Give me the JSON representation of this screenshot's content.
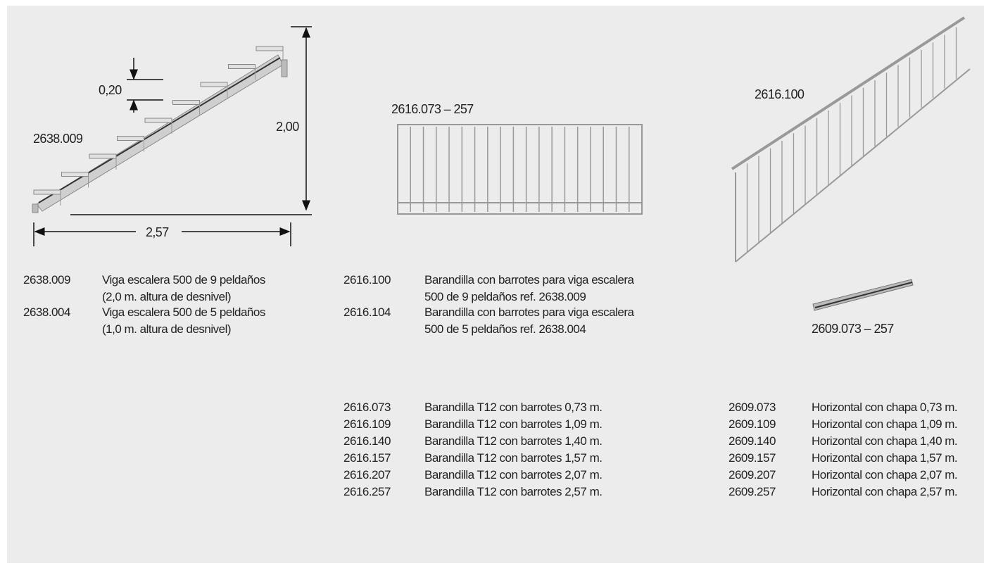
{
  "figures": {
    "stair": {
      "step_height": "0,20",
      "code": "2638.009",
      "height": "2,00",
      "length": "2,57"
    },
    "railing": {
      "code": "2616.073 – 257"
    },
    "stair_railing": {
      "code": "2616.100"
    },
    "horizontal": {
      "code": "2609.073 – 257"
    }
  },
  "stair_beams": [
    {
      "code": "2638.009",
      "lines": [
        "Viga escalera 500 de 9 peldaños",
        "(2,0 m. altura de desnivel)"
      ]
    },
    {
      "code": "2638.004",
      "lines": [
        "Viga escalera 500 de 5 peldaños",
        "(1,0 m. altura de desnivel)"
      ]
    }
  ],
  "stair_railings": [
    {
      "code": "2616.100",
      "lines": [
        "Barandilla con barrotes para viga escalera",
        "500 de 9 peldaños ref. 2638.009"
      ]
    },
    {
      "code": "2616.104",
      "lines": [
        "Barandilla con barrotes para viga escalera",
        "500 de 5 peldaños ref. 2638.004"
      ]
    }
  ],
  "railings": [
    {
      "code": "2616.073",
      "description": "Barandilla T12 con barrotes 0,73 m."
    },
    {
      "code": "2616.109",
      "description": "Barandilla T12 con barrotes 1,09 m."
    },
    {
      "code": "2616.140",
      "description": "Barandilla T12 con barrotes 1,40 m."
    },
    {
      "code": "2616.157",
      "description": "Barandilla T12 con barrotes 1,57 m."
    },
    {
      "code": "2616.207",
      "description": "Barandilla T12 con barrotes 2,07 m."
    },
    {
      "code": "2616.257",
      "description": "Barandilla T12 con barrotes 2,57 m."
    }
  ],
  "horizontals": [
    {
      "code": "2609.073",
      "description": "Horizontal con chapa 0,73 m."
    },
    {
      "code": "2609.109",
      "description": "Horizontal con chapa 1,09 m."
    },
    {
      "code": "2609.140",
      "description": "Horizontal con chapa 1,40 m."
    },
    {
      "code": "2609.157",
      "description": "Horizontal con chapa 1,57 m."
    },
    {
      "code": "2609.207",
      "description": "Horizontal con chapa 2,07 m."
    },
    {
      "code": "2609.257",
      "description": "Horizontal con chapa 2,57 m."
    }
  ]
}
